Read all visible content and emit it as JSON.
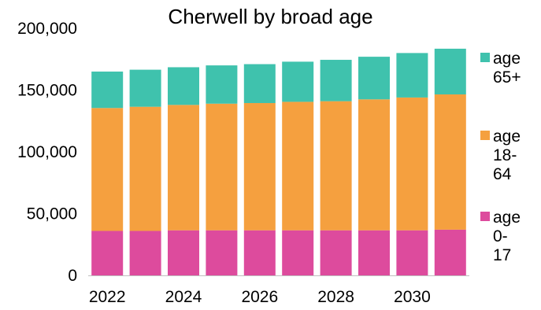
{
  "chart_data": {
    "type": "bar",
    "stacked": true,
    "title": "Cherwell  by broad age",
    "categories": [
      "2022",
      "2023",
      "2024",
      "2025",
      "2026",
      "2027",
      "2028",
      "2029",
      "2030",
      "2031"
    ],
    "x_tick_labels": [
      "2022",
      "",
      "2024",
      "",
      "2026",
      "",
      "2028",
      "",
      "2030",
      ""
    ],
    "ylim": [
      0,
      200000
    ],
    "y_ticks": [
      "0",
      "50,000",
      "100,000",
      "150,000",
      "200,000"
    ],
    "series": [
      {
        "name": "age 0-17",
        "legend_lines": [
          "age",
          "0-",
          "17"
        ],
        "color": "#dd4b9d",
        "values": [
          36000,
          36000,
          36500,
          36500,
          36500,
          36500,
          36500,
          36500,
          36500,
          37000
        ]
      },
      {
        "name": "age 18-64",
        "legend_lines": [
          "age",
          "18-",
          "64"
        ],
        "color": "#f5a03f",
        "values": [
          99500,
          100500,
          101500,
          102500,
          103000,
          104000,
          104500,
          106000,
          107500,
          109500
        ]
      },
      {
        "name": "age 65+",
        "legend_lines": [
          "age",
          "65+"
        ],
        "color": "#3fc2ad",
        "values": [
          29500,
          30000,
          30500,
          31000,
          31500,
          32500,
          33500,
          34500,
          36000,
          37000
        ]
      }
    ],
    "grid": false,
    "legend_position": "right"
  }
}
